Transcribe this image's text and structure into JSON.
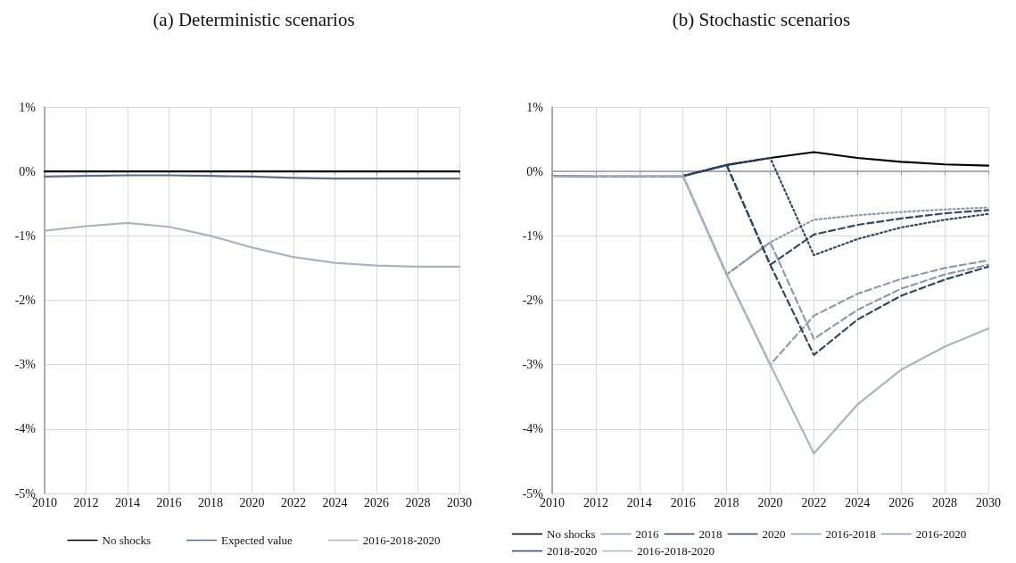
{
  "chart_data": [
    {
      "type": "line",
      "title": "(a) Deterministic scenarios",
      "x": [
        2010,
        2012,
        2014,
        2016,
        2018,
        2020,
        2022,
        2024,
        2026,
        2028,
        2030
      ],
      "series": [
        {
          "name": "No shocks",
          "color": "#000000",
          "line_style": "solid",
          "values": [
            0,
            0,
            0,
            0,
            0,
            0,
            0,
            0,
            0,
            0,
            0
          ]
        },
        {
          "name": "Expected value",
          "color": "#5b6f8e",
          "line_style": "solid",
          "values": [
            -0.08,
            -0.07,
            -0.06,
            -0.06,
            -0.07,
            -0.08,
            -0.1,
            -0.11,
            -0.11,
            -0.11,
            -0.11
          ]
        },
        {
          "name": "2016-2018-2020",
          "color": "#a9b4c4",
          "line_style": "solid",
          "values": [
            -0.92,
            -0.85,
            -0.8,
            -0.86,
            -1.0,
            -1.18,
            -1.33,
            -1.42,
            -1.46,
            -1.48,
            -1.48
          ]
        }
      ],
      "xlim": [
        2010,
        2030
      ],
      "xticks": [
        2010,
        2012,
        2014,
        2016,
        2018,
        2020,
        2022,
        2024,
        2026,
        2028,
        2030
      ],
      "ylim": [
        -5,
        1
      ],
      "yticks": [
        {
          "value": -5,
          "label": "-5%"
        },
        {
          "value": -4,
          "label": "-4%"
        },
        {
          "value": -3,
          "label": "-3%"
        },
        {
          "value": -2,
          "label": "-2%"
        },
        {
          "value": -1,
          "label": "-1%"
        },
        {
          "value": 0,
          "label": "0%"
        },
        {
          "value": 1,
          "label": "1%"
        }
      ],
      "grid": true,
      "legend": "bottom",
      "marker": "none"
    },
    {
      "type": "line",
      "title": "(b) Stochastic scenarios",
      "x": [
        2010,
        2012,
        2014,
        2016,
        2018,
        2020,
        2022,
        2024,
        2026,
        2028,
        2030
      ],
      "series": [
        {
          "name": "No shocks",
          "color": "#000000",
          "line_style": "solid",
          "values": [
            -0.08,
            -0.07,
            -0.07,
            -0.07,
            0.1,
            0.21,
            0.3,
            0.21,
            0.15,
            0.11,
            0.09
          ]
        },
        {
          "name": "2016",
          "color": "#8c9bb0",
          "line_style": "dotted",
          "values": [
            -0.08,
            -0.07,
            -0.07,
            -0.07,
            -1.6,
            -1.1,
            -0.75,
            -0.68,
            -0.63,
            -0.59,
            -0.56
          ]
        },
        {
          "name": "2018",
          "color": "#2e4a6b",
          "line_style": "dashed",
          "values": [
            -0.08,
            -0.07,
            -0.07,
            -0.07,
            0.1,
            -1.45,
            -0.98,
            -0.83,
            -0.73,
            -0.65,
            -0.6
          ]
        },
        {
          "name": "2020",
          "color": "#2e4a6b",
          "line_style": "dotted",
          "values": [
            -0.08,
            -0.07,
            -0.07,
            -0.07,
            0.1,
            0.21,
            -1.3,
            -1.05,
            -0.87,
            -0.75,
            -0.66
          ]
        },
        {
          "name": "2016-2018",
          "color": "#8c9bb0",
          "line_style": "dashed",
          "values": [
            -0.08,
            -0.07,
            -0.07,
            -0.07,
            -1.6,
            -3.0,
            -2.24,
            -1.9,
            -1.67,
            -1.5,
            -1.38
          ]
        },
        {
          "name": "2016-2020",
          "color": "#8c9bb0",
          "line_style": "dashed",
          "values": [
            -0.08,
            -0.07,
            -0.07,
            -0.07,
            -1.6,
            -1.1,
            -2.6,
            -2.15,
            -1.82,
            -1.6,
            -1.45
          ]
        },
        {
          "name": "2018-2020",
          "color": "#2e4a6b",
          "line_style": "dashed",
          "values": [
            -0.08,
            -0.07,
            -0.07,
            -0.07,
            0.1,
            -1.45,
            -2.85,
            -2.3,
            -1.93,
            -1.68,
            -1.48
          ]
        },
        {
          "name": "2016-2018-2020",
          "color": "#a9b4c4",
          "line_style": "solid",
          "values": [
            -0.08,
            -0.07,
            -0.07,
            -0.07,
            -1.6,
            -3.0,
            -4.38,
            -3.62,
            -3.08,
            -2.72,
            -2.44
          ]
        }
      ],
      "xlim": [
        2010,
        2030
      ],
      "xticks": [
        2010,
        2012,
        2014,
        2016,
        2018,
        2020,
        2022,
        2024,
        2026,
        2028,
        2030
      ],
      "ylim": [
        -5,
        1
      ],
      "yticks": [
        {
          "value": -5,
          "label": "-5%"
        },
        {
          "value": -4,
          "label": "-4%"
        },
        {
          "value": -3,
          "label": "-3%"
        },
        {
          "value": -2,
          "label": "-2%"
        },
        {
          "value": -1,
          "label": "-1%"
        },
        {
          "value": 0,
          "label": "0%"
        },
        {
          "value": 1,
          "label": "1%"
        }
      ],
      "grid": true,
      "legend": "bottom",
      "marker": "none"
    }
  ]
}
